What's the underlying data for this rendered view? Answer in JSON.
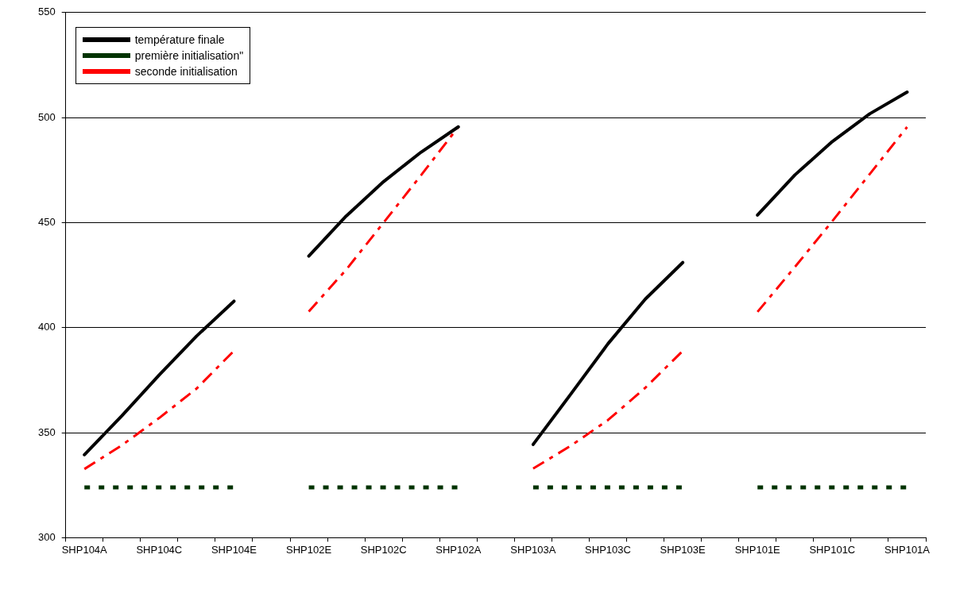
{
  "chart_data": {
    "type": "line",
    "categories": [
      "SHP104A",
      null,
      "SHP104C",
      null,
      "SHP104E",
      null,
      "SHP102E",
      null,
      "SHP102C",
      null,
      "SHP102A",
      null,
      "SHP103A",
      null,
      "SHP103C",
      null,
      "SHP103E",
      null,
      "SHP101E",
      null,
      "SHP101C",
      null,
      "SHP101A"
    ],
    "series": [
      {
        "name": "température finale",
        "color": "#000000",
        "line_style": "solid",
        "values": [
          339.5,
          358,
          377.5,
          396,
          412.6,
          null,
          434.1,
          453.1,
          469.5,
          483.5,
          495.6,
          null,
          344.4,
          368.2,
          392.3,
          413.6,
          431,
          null,
          453.6,
          472.7,
          488.6,
          501.8,
          512.1
        ]
      },
      {
        "name": "première initialisation\"",
        "color": "#003300",
        "line_style": "dotted",
        "values": [
          324,
          324,
          324,
          324,
          324,
          null,
          324,
          324,
          324,
          324,
          324,
          null,
          324,
          324,
          324,
          324,
          324,
          null,
          324,
          324,
          324,
          324,
          324
        ]
      },
      {
        "name": "seconde initialisation",
        "color": "#ff0000",
        "line_style": "dashed",
        "values": [
          332.7,
          344,
          357,
          371,
          389,
          null,
          407.7,
          427.6,
          450,
          472.5,
          495.6,
          null,
          332.9,
          343.7,
          356,
          371.4,
          388.9,
          null,
          407.5,
          428.9,
          450.7,
          473.1,
          495.5
        ]
      }
    ],
    "ylim": [
      300,
      550
    ],
    "yticks": [
      300,
      350,
      400,
      450,
      500,
      550
    ],
    "grid": "y",
    "legend": "top left",
    "marker": "none"
  }
}
